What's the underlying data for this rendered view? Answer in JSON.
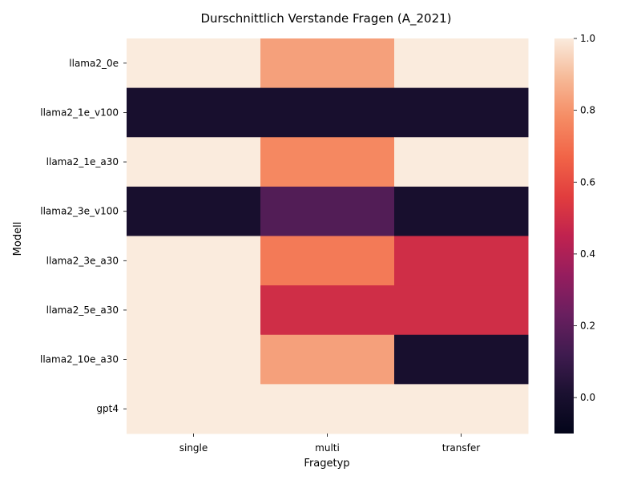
{
  "chart_data": {
    "type": "heatmap",
    "title": "Durschnittlich Verstande Fragen (A_2021)",
    "xlabel": "Fragetyp",
    "ylabel": "Modell",
    "x_categories": [
      "single",
      "multi",
      "transfer"
    ],
    "y_categories": [
      "llama2_0e",
      "llama2_1e_v100",
      "llama2_1e_a30",
      "llama2_3e_v100",
      "llama2_3e_a30",
      "llama2_5e_a30",
      "llama2_10e_a30",
      "gpt4"
    ],
    "values": [
      [
        1.0,
        0.83,
        1.0
      ],
      [
        0.0,
        0.0,
        0.0
      ],
      [
        1.0,
        0.77,
        1.0
      ],
      [
        0.0,
        0.17,
        0.0
      ],
      [
        1.0,
        0.73,
        0.5
      ],
      [
        1.0,
        0.5,
        0.5
      ],
      [
        1.0,
        0.83,
        0.0
      ],
      [
        1.0,
        1.0,
        1.0
      ]
    ],
    "colorbar": {
      "min": -0.1,
      "max": 1.0,
      "ticks": [
        "1.0",
        "0.8",
        "0.6",
        "0.4",
        "0.2",
        "0.0"
      ],
      "tick_values": [
        1.0,
        0.8,
        0.6,
        0.4,
        0.2,
        0.0
      ],
      "colormap": "rocket"
    },
    "grid": false
  }
}
